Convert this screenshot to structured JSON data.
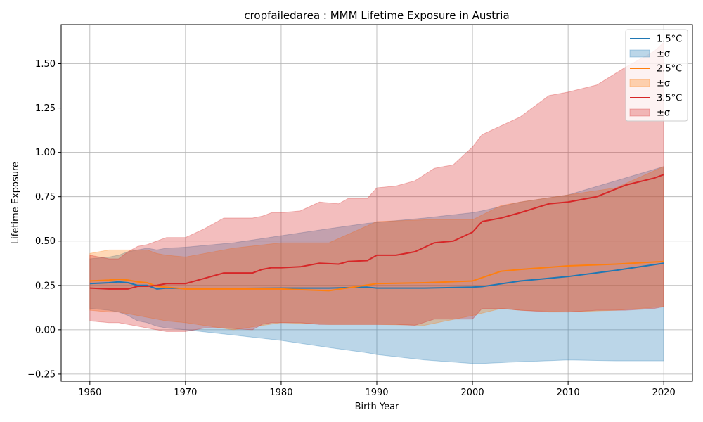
{
  "chart_data": {
    "type": "line",
    "title": "cropfailedarea : MMM Lifetime Exposure in Austria",
    "xlabel": "Birth Year",
    "ylabel": "Lifetime Exposure",
    "xlim": [
      1957,
      2023
    ],
    "ylim": [
      -0.29,
      1.72
    ],
    "xticks": [
      1960,
      1970,
      1980,
      1990,
      2000,
      2010,
      2020
    ],
    "yticks": [
      -0.25,
      0.0,
      0.25,
      0.5,
      0.75,
      1.0,
      1.25,
      1.5
    ],
    "xtick_labels": [
      "1960",
      "1970",
      "1980",
      "1990",
      "2000",
      "2010",
      "2020"
    ],
    "ytick_labels": [
      "−0.25",
      "0.00",
      "0.25",
      "0.50",
      "0.75",
      "1.00",
      "1.25",
      "1.50"
    ],
    "grid": true,
    "legend_position": "top-right",
    "series": [
      {
        "name": "1.5°C",
        "band_label": "±σ",
        "color": "#1f77b4",
        "x": [
          1960,
          1962,
          1963,
          1964,
          1965,
          1966,
          1967,
          1968,
          1970,
          1975,
          1980,
          1985,
          1989,
          1990,
          1995,
          2000,
          2001,
          2005,
          2010,
          2015,
          2020
        ],
        "mean": [
          0.26,
          0.265,
          0.27,
          0.265,
          0.25,
          0.25,
          0.23,
          0.235,
          0.232,
          0.233,
          0.235,
          0.235,
          0.24,
          0.235,
          0.235,
          0.24,
          0.243,
          0.275,
          0.3,
          0.335,
          0.375
        ],
        "upper": [
          0.4,
          0.41,
          0.42,
          0.44,
          0.45,
          0.46,
          0.45,
          0.46,
          0.465,
          0.49,
          0.53,
          0.57,
          0.6,
          0.605,
          0.63,
          0.66,
          0.67,
          0.72,
          0.76,
          0.84,
          0.92
        ],
        "lower": [
          0.12,
          0.11,
          0.1,
          0.08,
          0.05,
          0.04,
          0.02,
          0.01,
          0.0,
          -0.03,
          -0.06,
          -0.1,
          -0.13,
          -0.14,
          -0.17,
          -0.19,
          -0.19,
          -0.18,
          -0.17,
          -0.175,
          -0.175
        ]
      },
      {
        "name": "2.5°C",
        "band_label": "±σ",
        "color": "#ff7f0e",
        "x": [
          1960,
          1962,
          1963,
          1964,
          1965,
          1966,
          1967,
          1968,
          1970,
          1975,
          1980,
          1985,
          1990,
          1995,
          2000,
          2003,
          2005,
          2010,
          2015,
          2020
        ],
        "mean": [
          0.275,
          0.28,
          0.285,
          0.28,
          0.27,
          0.265,
          0.245,
          0.24,
          0.23,
          0.23,
          0.23,
          0.22,
          0.26,
          0.265,
          0.275,
          0.33,
          0.34,
          0.36,
          0.37,
          0.385
        ],
        "upper": [
          0.43,
          0.45,
          0.45,
          0.45,
          0.45,
          0.45,
          0.43,
          0.42,
          0.41,
          0.46,
          0.49,
          0.49,
          0.61,
          0.62,
          0.62,
          0.7,
          0.72,
          0.76,
          0.8,
          0.92
        ],
        "lower": [
          0.11,
          0.1,
          0.1,
          0.09,
          0.08,
          0.07,
          0.06,
          0.05,
          0.04,
          0.0,
          0.04,
          0.03,
          0.03,
          0.025,
          0.08,
          0.12,
          0.11,
          0.1,
          0.11,
          0.13
        ]
      },
      {
        "name": "3.5°C",
        "band_label": "±σ",
        "color": "#d62728",
        "x": [
          1960,
          1962,
          1963,
          1964,
          1965,
          1966,
          1967,
          1968,
          1970,
          1972,
          1974,
          1977,
          1978,
          1979,
          1980,
          1982,
          1984,
          1986,
          1987,
          1989,
          1990,
          1992,
          1994,
          1996,
          1998,
          2000,
          2001,
          2003,
          2005,
          2008,
          2010,
          2013,
          2016,
          2019,
          2020
        ],
        "mean": [
          0.235,
          0.23,
          0.23,
          0.23,
          0.245,
          0.245,
          0.25,
          0.26,
          0.26,
          0.29,
          0.32,
          0.32,
          0.34,
          0.35,
          0.35,
          0.355,
          0.375,
          0.37,
          0.385,
          0.39,
          0.42,
          0.42,
          0.44,
          0.49,
          0.5,
          0.55,
          0.61,
          0.63,
          0.66,
          0.71,
          0.72,
          0.75,
          0.815,
          0.855,
          0.875
        ],
        "upper": [
          0.42,
          0.4,
          0.4,
          0.44,
          0.47,
          0.48,
          0.5,
          0.52,
          0.52,
          0.57,
          0.63,
          0.63,
          0.64,
          0.66,
          0.66,
          0.67,
          0.72,
          0.71,
          0.74,
          0.74,
          0.8,
          0.81,
          0.84,
          0.91,
          0.93,
          1.03,
          1.1,
          1.15,
          1.2,
          1.32,
          1.34,
          1.38,
          1.48,
          1.57,
          1.62
        ],
        "lower": [
          0.05,
          0.04,
          0.04,
          0.03,
          0.02,
          0.01,
          0.0,
          -0.01,
          -0.01,
          0.01,
          0.01,
          0.0,
          0.03,
          0.04,
          0.04,
          0.04,
          0.03,
          0.03,
          0.03,
          0.03,
          0.03,
          0.03,
          0.025,
          0.06,
          0.06,
          0.06,
          0.12,
          0.12,
          0.11,
          0.1,
          0.1,
          0.11,
          0.11,
          0.12,
          0.13
        ]
      }
    ]
  }
}
